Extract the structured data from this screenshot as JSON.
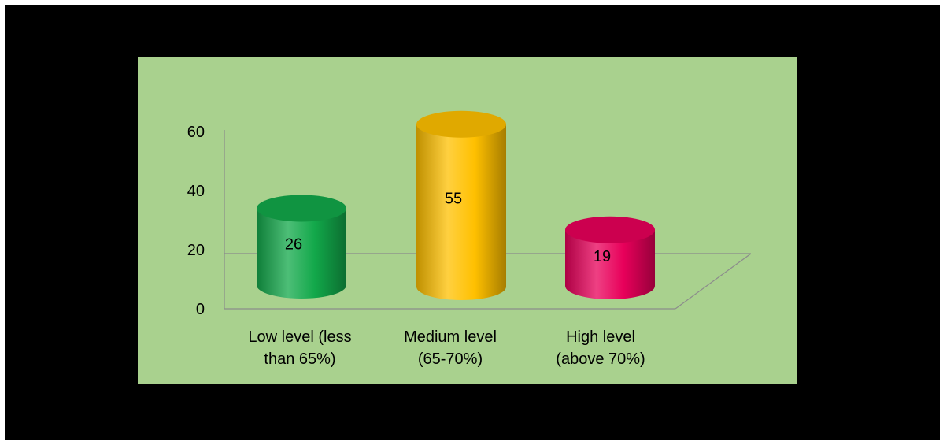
{
  "chart_data": {
    "type": "bar",
    "style": "3d-cylinder",
    "categories": [
      [
        "Low level (less",
        "than 65%)"
      ],
      [
        "Medium level",
        "(65-70%)"
      ],
      [
        "High level",
        "(above 70%)"
      ]
    ],
    "values": [
      26,
      55,
      19
    ],
    "bar_colors": [
      "#12a84a",
      "#ffc000",
      "#e8005a"
    ],
    "ylim": [
      0,
      60
    ],
    "yticks": [
      "0",
      "20",
      "40",
      "60"
    ],
    "title": "",
    "xlabel": "",
    "ylabel": "",
    "legend": "none",
    "background": "#a9d18e"
  }
}
